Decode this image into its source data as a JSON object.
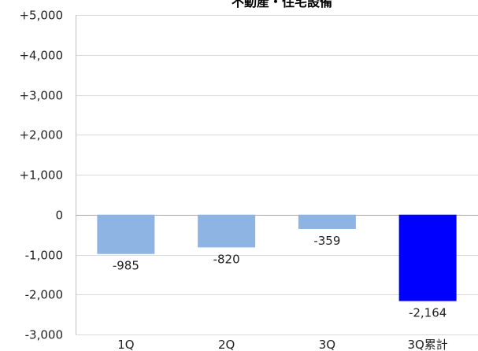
{
  "chart_data": {
    "type": "bar",
    "title": "不動産・住宅設備",
    "categories": [
      "1Q",
      "2Q",
      "3Q",
      "3Q累計"
    ],
    "values": [
      -985,
      -820,
      -359,
      -2164
    ],
    "value_labels": [
      "-985",
      "-820",
      "-359",
      "-2,164"
    ],
    "ylim": [
      -3000,
      5000
    ],
    "yticks": [
      5000,
      4000,
      3000,
      2000,
      1000,
      0,
      -1000,
      -2000,
      -3000
    ],
    "ytick_labels": [
      "+5,000",
      "+4,000",
      "+3,000",
      "+2,000",
      "+1,000",
      "0",
      "-1,000",
      "-2,000",
      "-3,000"
    ],
    "grid": true,
    "bar_colors": [
      "#8db4e2",
      "#8db4e2",
      "#8db4e2",
      "#0000ff"
    ]
  }
}
